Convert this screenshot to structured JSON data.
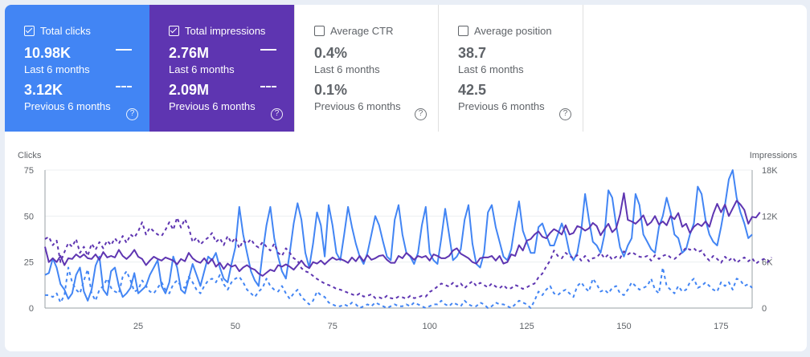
{
  "cards": [
    {
      "id": "clicks",
      "label": "Total clicks",
      "checked": true,
      "value_last": "10.98K",
      "label_last": "Last 6 months",
      "value_prev": "3.12K",
      "label_prev": "Previous 6 months"
    },
    {
      "id": "impr",
      "label": "Total impressions",
      "checked": true,
      "value_last": "2.76M",
      "label_last": "Last 6 months",
      "value_prev": "2.09M",
      "label_prev": "Previous 6 months"
    },
    {
      "id": "ctr",
      "label": "Average CTR",
      "checked": false,
      "value_last": "0.4%",
      "label_last": "Last 6 months",
      "value_prev": "0.1%",
      "label_prev": "Previous 6 months"
    },
    {
      "id": "pos",
      "label": "Average position",
      "checked": false,
      "value_last": "38.7",
      "label_last": "Last 6 months",
      "value_prev": "42.5",
      "label_prev": "Previous 6 months"
    }
  ],
  "help_glyph": "?",
  "chart_data": {
    "type": "line",
    "left_axis_title": "Clicks",
    "right_axis_title": "Impressions",
    "left_ylim": [
      0,
      75
    ],
    "left_ticks": [
      "0",
      "25",
      "50",
      "75"
    ],
    "right_ylim": [
      0,
      18
    ],
    "right_ticks": [
      "0",
      "6K",
      "12K",
      "18K"
    ],
    "xlim": [
      1,
      183
    ],
    "x_ticks": [
      25,
      50,
      75,
      100,
      125,
      150,
      175
    ],
    "colors": {
      "clicks": "#4285f4",
      "impressions": "#5e35b1"
    },
    "series": [
      {
        "name": "Clicks (Last 6 months)",
        "axis": "left",
        "style": "solid",
        "color": "#4285f4",
        "values": [
          18,
          19,
          27,
          22,
          13,
          10,
          5,
          8,
          18,
          22,
          9,
          4,
          10,
          23,
          28,
          10,
          7,
          20,
          22,
          12,
          6,
          8,
          11,
          19,
          8,
          10,
          12,
          18,
          22,
          26,
          12,
          8,
          14,
          28,
          22,
          10,
          8,
          16,
          24,
          18,
          12,
          20,
          28,
          26,
          30,
          22,
          16,
          14,
          24,
          33,
          55,
          40,
          30,
          20,
          15,
          12,
          30,
          45,
          55,
          38,
          28,
          20,
          16,
          30,
          46,
          57,
          48,
          30,
          22,
          35,
          52,
          45,
          28,
          56,
          45,
          30,
          26,
          40,
          55,
          44,
          35,
          28,
          24,
          30,
          40,
          50,
          45,
          36,
          28,
          26,
          48,
          56,
          40,
          30,
          28,
          24,
          30,
          45,
          55,
          30,
          26,
          24,
          38,
          54,
          40,
          26,
          28,
          32,
          48,
          56,
          35,
          24,
          22,
          30,
          52,
          56,
          44,
          36,
          28,
          26,
          32,
          46,
          58,
          42,
          36,
          30,
          30,
          44,
          46,
          40,
          34,
          34,
          40,
          46,
          40,
          30,
          26,
          30,
          42,
          62,
          48,
          36,
          34,
          30,
          40,
          64,
          60,
          45,
          33,
          28,
          34,
          38,
          62,
          56,
          40,
          36,
          32,
          30,
          44,
          50,
          60,
          52,
          40,
          38,
          30,
          32,
          40,
          46,
          66,
          62,
          48,
          40,
          36,
          34,
          44,
          56,
          70,
          75,
          60,
          52,
          46,
          38,
          40
        ]
      },
      {
        "name": "Impressions (Last 6 months)",
        "axis": "right",
        "style": "solid",
        "color": "#5e35b1",
        "values": [
          8,
          6,
          6.5,
          6,
          6.8,
          5.6,
          6.5,
          6.4,
          7,
          6.6,
          7,
          6.5,
          6.4,
          7,
          6.3,
          7.3,
          6.6,
          6.8,
          6.6,
          7.6,
          6.8,
          6.4,
          6.9,
          7.6,
          6.7,
          6.4,
          5.6,
          6.2,
          6.7,
          6.4,
          6.2,
          6.6,
          6.4,
          6.2,
          5.7,
          6.4,
          6.1,
          7.2,
          6.5,
          6.1,
          5.9,
          6.5,
          5.8,
          6.4,
          5.4,
          5.9,
          5.1,
          5.8,
          5.4,
          5.6,
          4.8,
          5.3,
          5.6,
          5.2,
          5,
          4.5,
          4.2,
          4.6,
          5,
          4.8,
          5.6,
          5.4,
          5.7,
          5.4,
          5,
          5.6,
          6.2,
          5.5,
          5.2,
          6,
          5.8,
          6.2,
          5.7,
          6.2,
          6.6,
          6.3,
          6.4,
          6.2,
          5.9,
          6.6,
          6.1,
          6.8,
          6.1,
          6.9,
          6.3,
          6.5,
          6.8,
          6.9,
          6.3,
          5.9,
          5.9,
          6.8,
          6.5,
          7.2,
          6.8,
          6.3,
          6.8,
          6.6,
          6.8,
          6.2,
          7,
          6.8,
          6.5,
          6.5,
          6.8,
          7.5,
          7.8,
          7.1,
          6.8,
          6.5,
          6,
          5.8,
          6.5,
          6.6,
          6.6,
          6.8,
          6.2,
          6.8,
          5.8,
          6,
          7,
          6.8,
          8.2,
          7.5,
          8.8,
          9,
          9.6,
          10,
          9.3,
          9.1,
          9.8,
          10.3,
          10,
          9.6,
          10.8,
          9.6,
          9.8,
          10.7,
          10.5,
          10.1,
          10.4,
          11.1,
          10.7,
          9.5,
          10.3,
          11,
          9.9,
          10.4,
          12.2,
          15,
          11.5,
          11.3,
          11,
          11.5,
          12.1,
          10.8,
          11.2,
          12,
          10.9,
          11.3,
          10.8,
          12,
          11.6,
          12.4,
          10.6,
          11,
          9.8,
          10.6,
          11,
          10.7,
          11.3,
          10.6,
          12.3,
          13.6,
          12.5,
          13.5,
          12,
          13,
          14,
          13.5,
          12.8,
          11,
          11.9,
          11.8,
          12.5
        ]
      },
      {
        "name": "Clicks (Previous 6 months)",
        "axis": "left",
        "style": "dashed",
        "color": "#4285f4",
        "values": [
          7,
          7,
          6,
          8,
          3,
          7,
          22,
          14,
          10,
          8,
          15,
          21,
          8,
          4,
          10,
          12,
          16,
          11,
          9,
          8,
          17,
          20,
          15,
          9,
          10,
          15,
          12,
          9,
          8,
          11,
          14,
          10,
          8,
          13,
          15,
          12,
          11,
          17,
          14,
          10,
          8,
          12,
          15,
          16,
          14,
          18,
          13,
          10,
          14,
          16,
          17,
          14,
          10,
          8,
          6,
          9,
          11,
          16,
          12,
          10,
          9,
          12,
          8,
          5,
          8,
          10,
          6,
          4,
          2,
          4,
          9,
          7,
          6,
          3,
          2,
          1,
          1,
          2,
          1,
          3,
          2,
          0,
          1,
          2,
          1,
          3,
          2,
          1,
          0,
          1,
          2,
          1,
          1,
          2,
          1,
          3,
          2,
          1,
          0,
          1,
          2,
          2,
          4,
          2,
          1,
          3,
          2,
          1,
          4,
          2,
          1,
          1,
          3,
          2,
          0,
          1,
          3,
          2,
          2,
          1,
          0,
          2,
          4,
          3,
          2,
          0,
          4,
          9,
          7,
          10,
          12,
          8,
          7,
          9,
          10,
          8,
          6,
          12,
          14,
          11,
          9,
          16,
          13,
          9,
          10,
          8,
          11,
          12,
          8,
          7,
          10,
          14,
          12,
          10,
          11,
          12,
          16,
          10,
          8,
          22,
          12,
          10,
          8,
          12,
          9,
          10,
          14,
          16,
          11,
          12,
          14,
          12,
          10,
          9,
          14,
          12,
          14,
          10,
          16,
          15,
          12,
          13,
          11
        ]
      },
      {
        "name": "Impressions (Previous 6 months)",
        "axis": "right",
        "style": "dashed",
        "color": "#5e35b1",
        "values": [
          9,
          9.3,
          8.2,
          8.8,
          6,
          7.3,
          8.5,
          8,
          9,
          7.2,
          8,
          6.8,
          8.4,
          7.6,
          8.6,
          7.8,
          8.8,
          8.2,
          9.1,
          8.4,
          9.4,
          8.5,
          9.6,
          9.2,
          10,
          11.2,
          9.6,
          10.5,
          10,
          9.6,
          9.4,
          10.2,
          11.2,
          10.2,
          11.8,
          10.5,
          11.6,
          10.5,
          8.6,
          9.2,
          8.3,
          8.8,
          9.2,
          9.8,
          8.6,
          9.1,
          8.2,
          9.4,
          8.5,
          9.2,
          7.8,
          8.8,
          8.4,
          9,
          8.2,
          7.9,
          8.6,
          8,
          7.5,
          8.4,
          7.2,
          6.8,
          7.8,
          7.2,
          6.5,
          6.2,
          5.2,
          4.8,
          4.6,
          4.2,
          3.8,
          3.5,
          3.2,
          3,
          2.8,
          2.5,
          2.4,
          2.2,
          2,
          1.8,
          1.6,
          1.9,
          1.5,
          1.6,
          1.8,
          1.3,
          1.4,
          1.2,
          1.6,
          1.3,
          1.2,
          1.5,
          1.4,
          1.2,
          1.6,
          1.3,
          1.4,
          1.6,
          1.5,
          2.1,
          2.4,
          2.8,
          3.2,
          3,
          2.8,
          3.3,
          2.8,
          3.2,
          2.6,
          3.1,
          3.5,
          2.9,
          3.3,
          3,
          2.7,
          3.2,
          2.8,
          2.6,
          3,
          2.5,
          2.6,
          3,
          2.8,
          2.5,
          2.7,
          3,
          3.2,
          4,
          4.5,
          5.4,
          6.2,
          7.5,
          6.8,
          6.5,
          7.2,
          6.8,
          6.5,
          6.9,
          6.2,
          6.8,
          6.1,
          6.5,
          6.6,
          7.2,
          6.5,
          7,
          6.3,
          6.7,
          6.5,
          7.4,
          7,
          7.3,
          7,
          6.7,
          6.6,
          6.8,
          6.2,
          6.9,
          6.4,
          6.8,
          7,
          6.6,
          6.4,
          6.8,
          7.3,
          7.9,
          7.6,
          7.8,
          7.3,
          7.5,
          6.7,
          6.2,
          6.8,
          6.4,
          5.9,
          6.7,
          6.2,
          6.6,
          5.9,
          6.3,
          6.6,
          6.1,
          6.5,
          5.8,
          6.2,
          6.4,
          6,
          6.6
        ]
      }
    ]
  }
}
